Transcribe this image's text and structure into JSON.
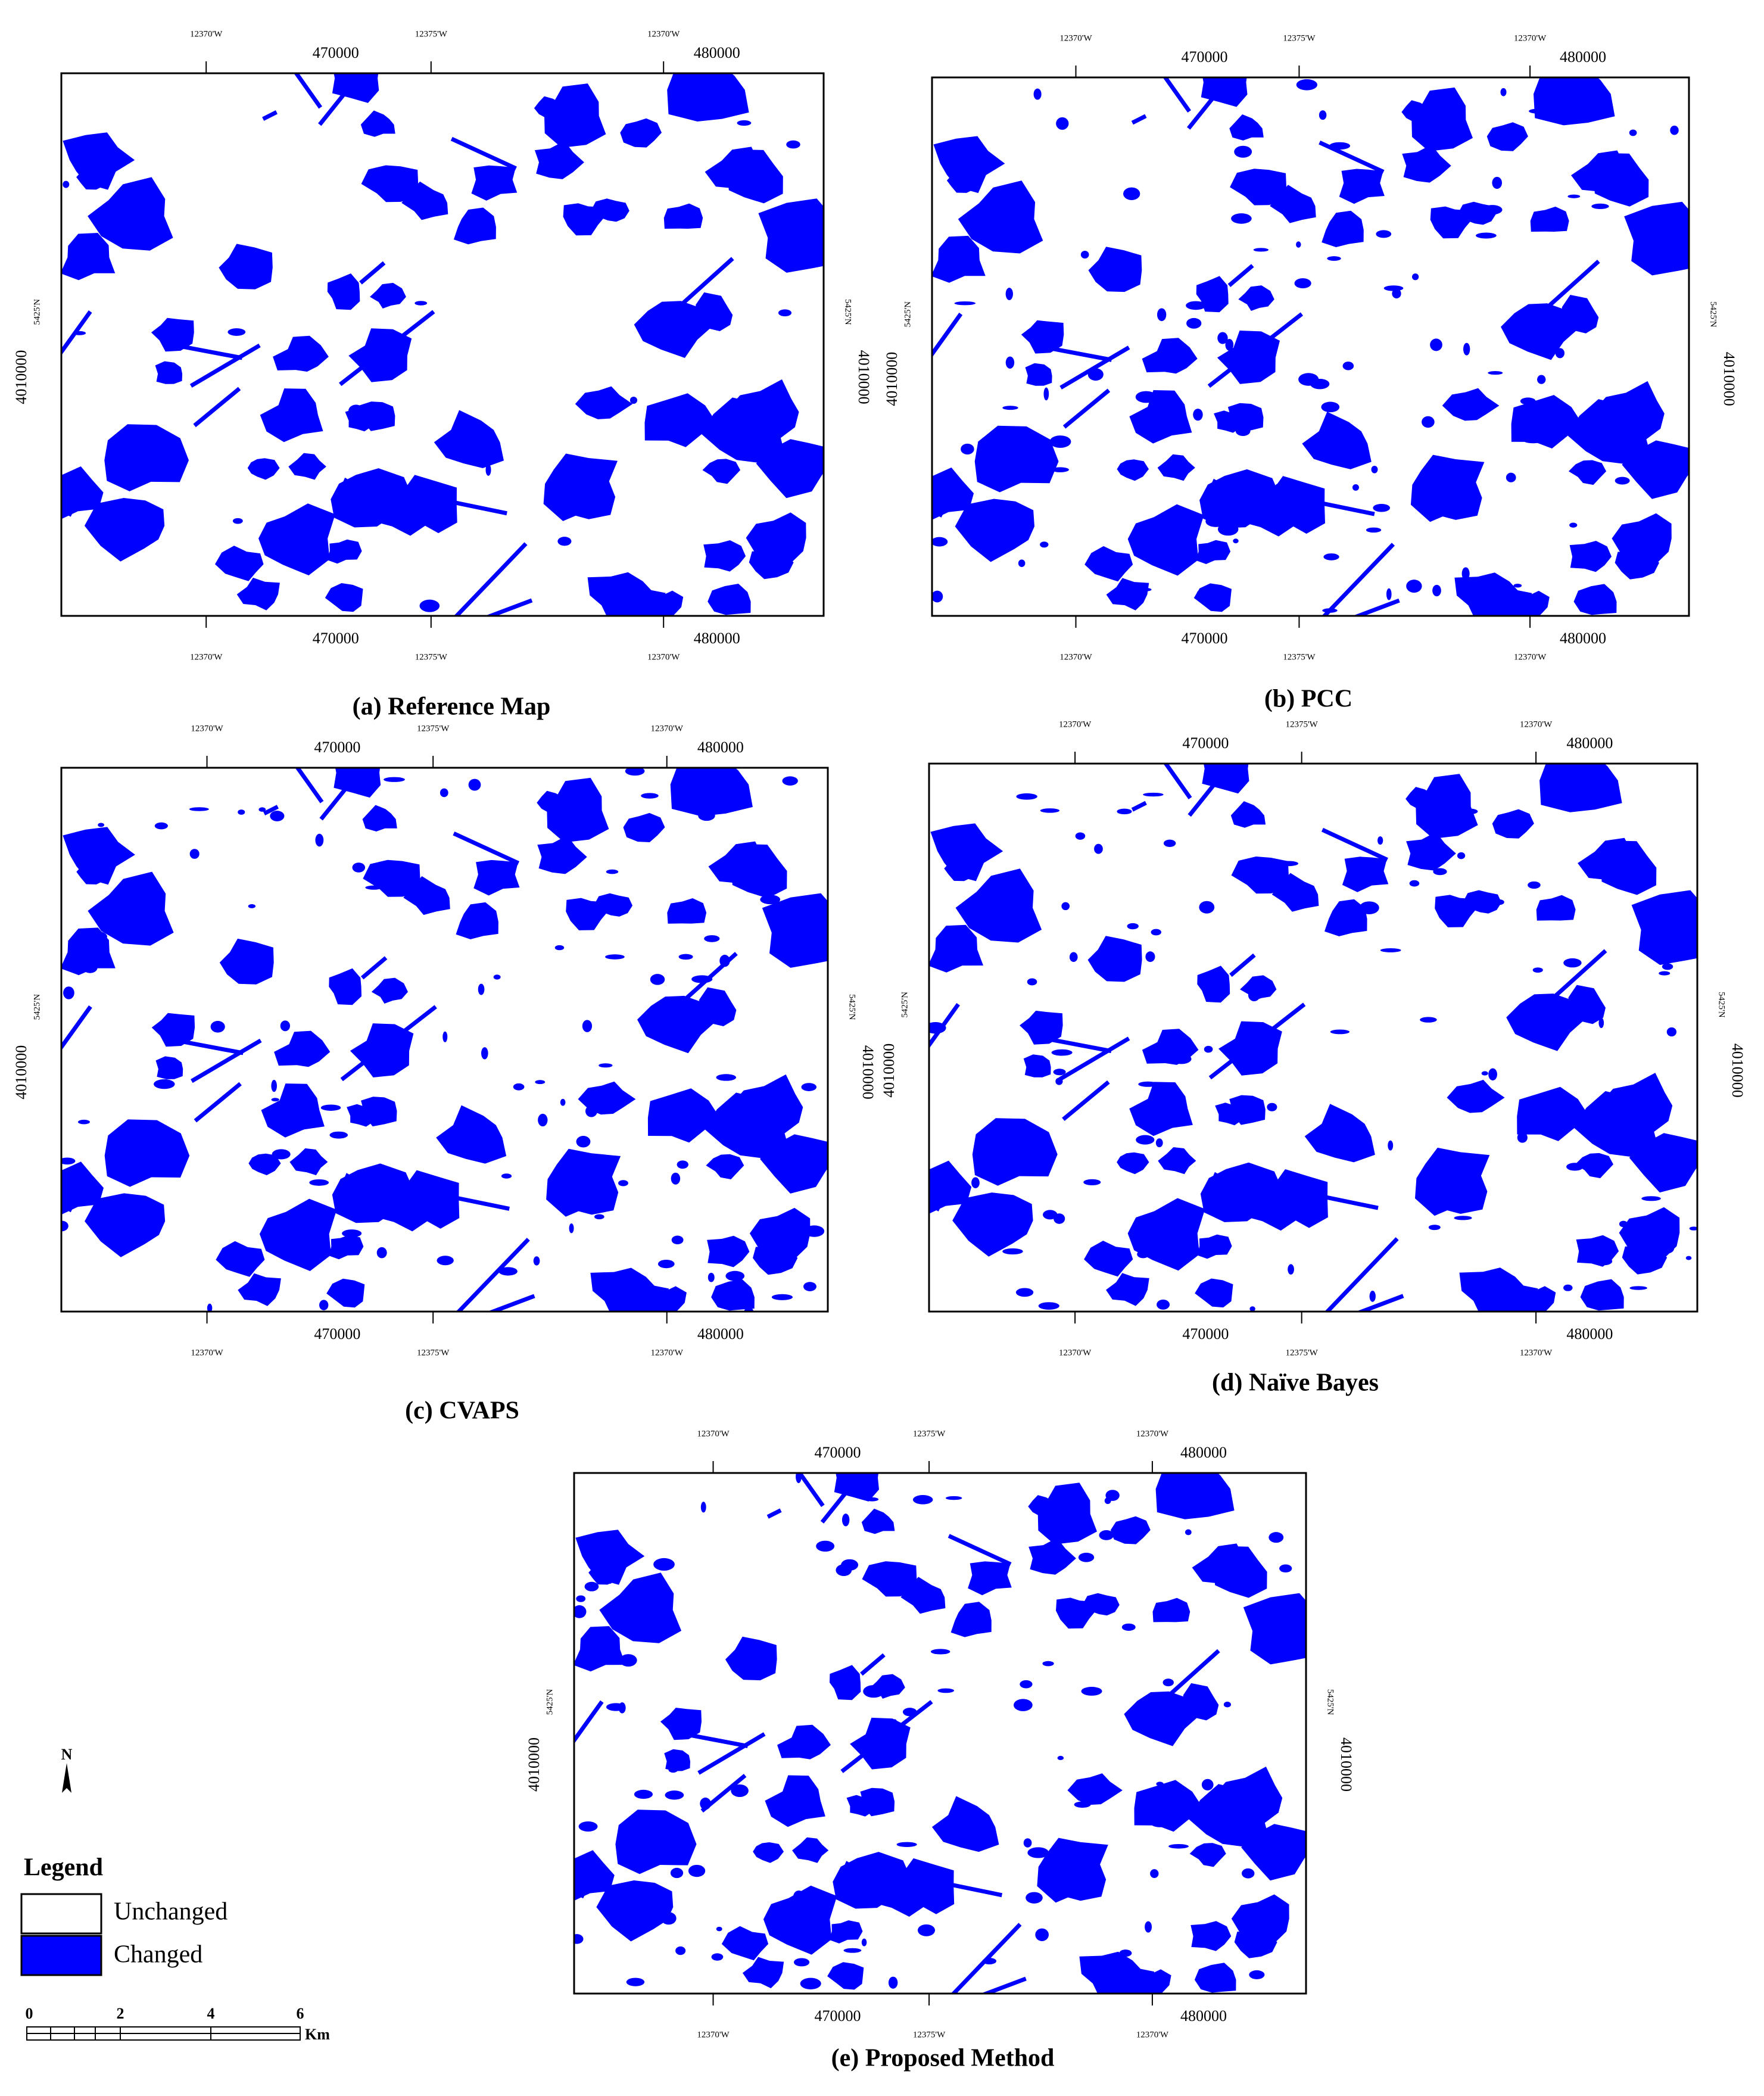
{
  "panels": [
    {
      "caption": "(a) Reference Map"
    },
    {
      "caption": "(b) PCC"
    },
    {
      "caption": "(c) CVAPS"
    },
    {
      "caption": "(d) Naïve Bayes"
    },
    {
      "caption": "(e) Proposed Method"
    }
  ],
  "map_labels": {
    "lon_minor": [
      "12370'W",
      "12375'W",
      "12370'W"
    ],
    "easting": [
      "470000",
      "480000"
    ],
    "lat_minor": "5425'N",
    "northing": "4010000"
  },
  "legend": {
    "north": "N",
    "title": "Legend",
    "items": [
      {
        "label": "Unchanged",
        "color": "#ffffff"
      },
      {
        "label": "Changed",
        "color": "#0000ff"
      }
    ]
  },
  "scale_bar": {
    "labels": [
      "0",
      "2",
      "4",
      "6"
    ],
    "unit": "Km"
  }
}
